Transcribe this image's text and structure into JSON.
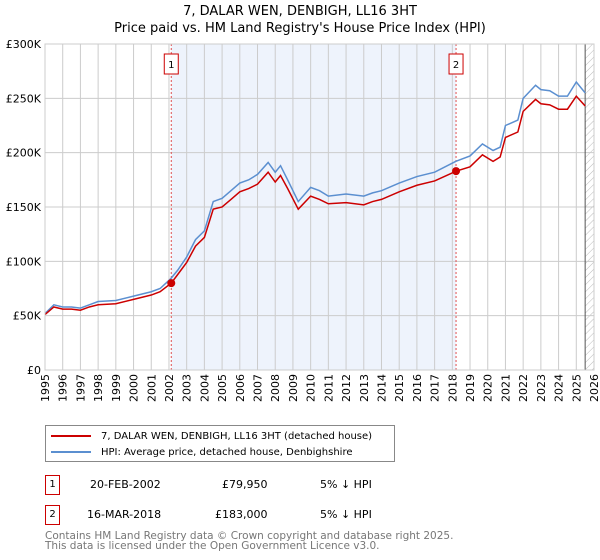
{
  "chart_data": {
    "type": "line",
    "title": "7, DALAR WEN, DENBIGH, LL16 3HT",
    "subtitle": "Price paid vs. HM Land Registry's House Price Index (HPI)",
    "xlim": [
      1995,
      2026
    ],
    "ylim": [
      0,
      300000
    ],
    "x_ticks": [
      "1995",
      "1996",
      "1997",
      "1998",
      "1999",
      "2000",
      "2001",
      "2002",
      "2003",
      "2004",
      "2005",
      "2006",
      "2007",
      "2008",
      "2009",
      "2010",
      "2011",
      "2012",
      "2013",
      "2014",
      "2015",
      "2016",
      "2017",
      "2018",
      "2019",
      "2020",
      "2021",
      "2022",
      "2023",
      "2024",
      "2025",
      "2026"
    ],
    "y_ticks": [
      {
        "v": 0,
        "l": "£0"
      },
      {
        "v": 50000,
        "l": "£50K"
      },
      {
        "v": 100000,
        "l": "£100K"
      },
      {
        "v": 150000,
        "l": "£150K"
      },
      {
        "v": 200000,
        "l": "£200K"
      },
      {
        "v": 250000,
        "l": "£250K"
      },
      {
        "v": 300000,
        "l": "£300K"
      }
    ],
    "grid": true,
    "shaded_range": [
      2002.13,
      2018.21
    ],
    "future_hatch_from": 2025.5,
    "series": [
      {
        "name": "HPI",
        "color": "#5b8fd0",
        "x": [
          1995,
          1995.5,
          1996,
          1996.5,
          1997,
          1997.5,
          1998,
          1999,
          2000,
          2001,
          2001.5,
          2002.1,
          2002.5,
          2003,
          2003.5,
          2004,
          2004.5,
          2005,
          2005.5,
          2006,
          2006.5,
          2007,
          2007.6,
          2008,
          2008.3,
          2008.7,
          2009.3,
          2010,
          2010.5,
          2011,
          2012,
          2013,
          2013.5,
          2014,
          2015,
          2016,
          2017,
          2018.2,
          2019,
          2019.7,
          2020.3,
          2020.7,
          2021,
          2021.7,
          2022,
          2022.7,
          2023,
          2023.5,
          2024,
          2024.5,
          2025,
          2025.5
        ],
        "y": [
          52000,
          60000,
          58000,
          58000,
          57000,
          60000,
          63000,
          64000,
          68000,
          72000,
          75000,
          84000,
          92000,
          104000,
          120000,
          128000,
          155000,
          158000,
          165000,
          172000,
          175000,
          180000,
          191000,
          182000,
          188000,
          175000,
          155000,
          168000,
          165000,
          160000,
          162000,
          160000,
          163000,
          165000,
          172000,
          178000,
          182000,
          192000,
          197000,
          208000,
          202000,
          205000,
          225000,
          230000,
          250000,
          262000,
          258000,
          257000,
          252000,
          252000,
          265000,
          255000
        ]
      },
      {
        "name": "Price paid",
        "color": "#cc0000",
        "x": [
          1995,
          1995.5,
          1996,
          1996.5,
          1997,
          1997.5,
          1998,
          1999,
          2000,
          2001,
          2001.5,
          2002.13,
          2002.5,
          2003,
          2003.5,
          2004,
          2004.5,
          2005,
          2005.5,
          2006,
          2006.5,
          2007,
          2007.6,
          2008,
          2008.3,
          2008.7,
          2009.3,
          2010,
          2010.5,
          2011,
          2012,
          2013,
          2013.5,
          2014,
          2015,
          2016,
          2017,
          2018.21,
          2019,
          2019.7,
          2020.3,
          2020.7,
          2021,
          2021.7,
          2022,
          2022.7,
          2023,
          2023.5,
          2024,
          2024.5,
          2025,
          2025.5
        ],
        "y": [
          51000,
          58000,
          56000,
          56000,
          55000,
          58000,
          60000,
          61000,
          65000,
          69000,
          72000,
          79950,
          88000,
          99000,
          114000,
          122000,
          148000,
          150000,
          157000,
          164000,
          167000,
          171000,
          182000,
          173000,
          179000,
          167000,
          148000,
          160000,
          157000,
          153000,
          154000,
          152000,
          155000,
          157000,
          164000,
          170000,
          174000,
          183000,
          187000,
          198000,
          192000,
          196000,
          214000,
          219000,
          238000,
          249000,
          245000,
          244000,
          240000,
          240000,
          252000,
          243000
        ]
      }
    ],
    "annotations": [
      {
        "label": "1",
        "x": 2002.13,
        "y": 79950
      },
      {
        "label": "2",
        "x": 2018.21,
        "y": 183000
      }
    ],
    "legend": [
      "7, DALAR WEN, DENBIGH, LL16 3HT (detached house)",
      "HPI: Average price, detached house, Denbighshire"
    ]
  },
  "sales": [
    {
      "n": "1",
      "date": "20-FEB-2002",
      "price": "£79,950",
      "delta": "5% ↓ HPI"
    },
    {
      "n": "2",
      "date": "16-MAR-2018",
      "price": "£183,000",
      "delta": "5% ↓ HPI"
    }
  ],
  "footer": [
    "Contains HM Land Registry data © Crown copyright and database right 2025.",
    "This data is licensed under the Open Government Licence v3.0."
  ]
}
